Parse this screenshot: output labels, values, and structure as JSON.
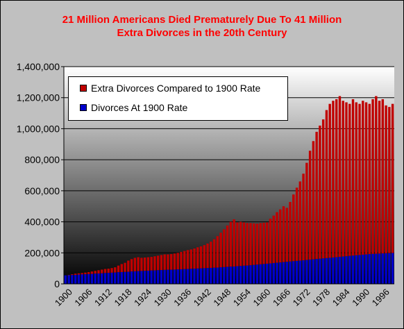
{
  "title_line1": "21 Million Americans Died Prematurely Due To 41 Million",
  "title_line2": "Extra Divorces in the 20th Century",
  "colors": {
    "title": "#ff0000",
    "extra": "#c00000",
    "base": "#0000cc",
    "plot_top": "#ffffff",
    "plot_bottom": "#000000"
  },
  "chart_data": {
    "type": "bar",
    "stacked": true,
    "title": "21 Million Americans Died Prematurely Due To 41 Million Extra Divorces in the 20th Century",
    "xlabel": "",
    "ylabel": "",
    "ylim": [
      0,
      1400000
    ],
    "yticks": [
      "0",
      "200,000",
      "400,000",
      "600,000",
      "800,000",
      "1,000,000",
      "1,200,000",
      "1,400,000"
    ],
    "ytick_values": [
      0,
      200000,
      400000,
      600000,
      800000,
      1000000,
      1200000,
      1400000
    ],
    "x_start": 1900,
    "x_end": 2000,
    "xtick_labels": [
      "1900",
      "1906",
      "1912",
      "1918",
      "1924",
      "1930",
      "1936",
      "1942",
      "1948",
      "1954",
      "1960",
      "1966",
      "1972",
      "1978",
      "1984",
      "1990",
      "1996"
    ],
    "grid": true,
    "legend_position": "top-left",
    "legend": [
      "Extra Divorces Compared to 1900 Rate",
      "Divorces At 1900 Rate"
    ],
    "series": [
      {
        "name": "Divorces At 1900 Rate",
        "values": [
          55000,
          56000,
          57000,
          58000,
          60000,
          61000,
          62000,
          63000,
          64000,
          66000,
          67000,
          68000,
          70000,
          71000,
          72000,
          73000,
          75000,
          76000,
          77000,
          78000,
          80000,
          81000,
          82000,
          83000,
          84000,
          85000,
          86000,
          87000,
          88000,
          89000,
          90000,
          91000,
          91000,
          92000,
          93000,
          94000,
          95000,
          96000,
          97000,
          98000,
          99000,
          100000,
          101000,
          102000,
          103000,
          104000,
          105000,
          107000,
          108000,
          110000,
          111000,
          112000,
          114000,
          115000,
          117000,
          118000,
          120000,
          122000,
          124000,
          126000,
          128000,
          130000,
          132000,
          134000,
          136000,
          138000,
          140000,
          142000,
          144000,
          146000,
          148000,
          150000,
          152000,
          154000,
          156000,
          158000,
          160000,
          162000,
          164000,
          166000,
          168000,
          170000,
          172000,
          174000,
          176000,
          178000,
          180000,
          182000,
          184000,
          186000,
          188000,
          190000,
          192000,
          193000,
          194000,
          195000,
          196000,
          197000,
          198000,
          199000
        ]
      },
      {
        "name": "Extra Divorces Compared to 1900 Rate",
        "total_values": [
          55000,
          58000,
          62000,
          66000,
          68000,
          70000,
          73000,
          76000,
          80000,
          84000,
          88000,
          92000,
          96000,
          98000,
          102000,
          107000,
          118000,
          128000,
          136000,
          150000,
          160000,
          168000,
          172000,
          168000,
          170000,
          172000,
          174000,
          178000,
          182000,
          186000,
          190000,
          190000,
          192000,
          196000,
          200000,
          206000,
          212000,
          218000,
          222000,
          228000,
          236000,
          242000,
          250000,
          260000,
          272000,
          288000,
          308000,
          330000,
          352000,
          376000,
          400000,
          416000,
          396000,
          400000,
          396000,
          392000,
          392000,
          390000,
          388000,
          392000,
          394000,
          396000,
          420000,
          440000,
          462000,
          480000,
          500000,
          490000,
          528000,
          576000,
          620000,
          660000,
          710000,
          780000,
          858000,
          920000,
          980000,
          1020000,
          1060000,
          1120000,
          1160000,
          1180000,
          1190000,
          1210000,
          1180000,
          1170000,
          1160000,
          1190000,
          1170000,
          1160000,
          1180000,
          1170000,
          1160000,
          1190000,
          1210000,
          1180000,
          1190000,
          1150000,
          1140000,
          1160000
        ]
      }
    ]
  }
}
